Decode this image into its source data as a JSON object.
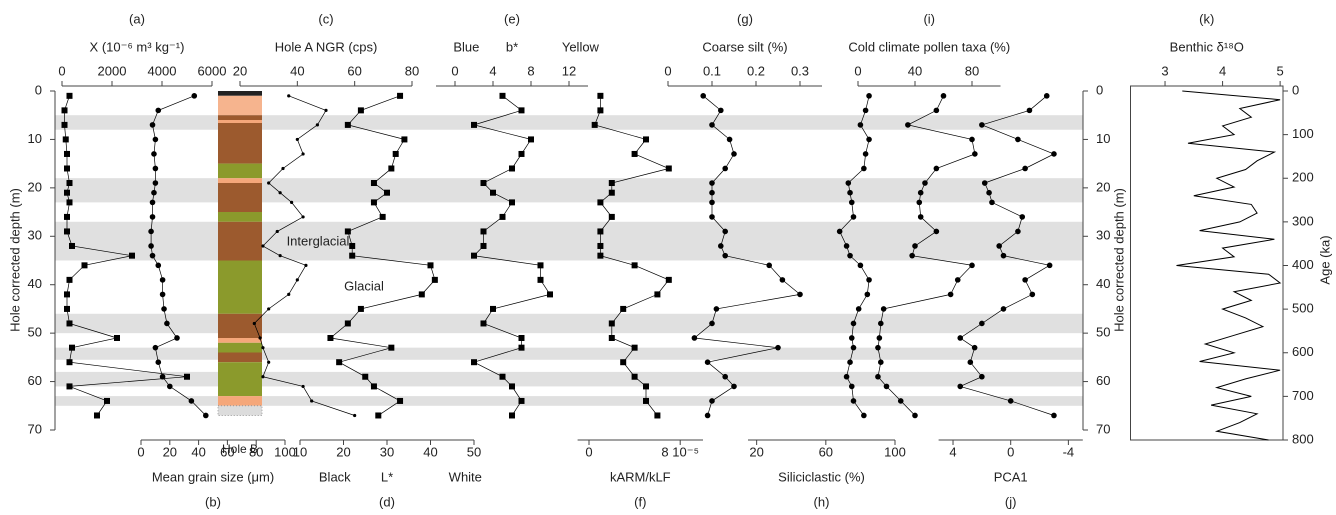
{
  "chart_data": [
    {
      "type": "frame",
      "ylabel": "Hole corrected depth (m)",
      "ylim": [
        0,
        70
      ],
      "yticks": [
        0,
        10,
        20,
        30,
        40,
        50,
        60,
        70
      ],
      "bands": [
        [
          5,
          8
        ],
        [
          18,
          23
        ],
        [
          27,
          35
        ],
        [
          46,
          50
        ],
        [
          53,
          55.5
        ],
        [
          58,
          61
        ],
        [
          63,
          65
        ]
      ],
      "annotations": [
        "Interglacial",
        "Glacial"
      ],
      "core_label": "Hole B"
    },
    {
      "type": "line",
      "label": "(a)",
      "xlabel": "X (10⁻⁶ m³ kg⁻¹)",
      "axis_side": "top",
      "xlim": [
        0,
        6000
      ],
      "xticks": [
        0,
        2000,
        4000,
        6000
      ],
      "marker": "square",
      "color": "#000",
      "y": [
        1,
        4,
        7,
        10,
        13,
        16,
        19,
        21,
        23,
        26,
        29,
        32,
        34,
        36,
        39,
        42,
        45,
        48,
        51,
        53,
        56,
        59,
        61,
        64,
        67
      ],
      "values": [
        300,
        100,
        100,
        150,
        200,
        200,
        300,
        200,
        300,
        200,
        200,
        400,
        2800,
        900,
        300,
        200,
        200,
        300,
        2200,
        400,
        300,
        5000,
        300,
        1800,
        1400
      ]
    },
    {
      "type": "line",
      "label": "(b)",
      "xlabel": "Mean grain size (μm)",
      "axis_side": "bottom",
      "xlim": [
        0,
        100
      ],
      "xticks": [
        0,
        20,
        40,
        60,
        80,
        100
      ],
      "marker": "circle",
      "color": "#000",
      "y": [
        1,
        4,
        7,
        10,
        13,
        16,
        19,
        21,
        23,
        26,
        29,
        32,
        34,
        36,
        39,
        42,
        45,
        48,
        51,
        53,
        56,
        59,
        61,
        64,
        67
      ],
      "values": [
        37,
        12,
        8,
        10,
        9,
        10,
        10,
        9,
        8,
        8,
        7,
        7,
        8,
        12,
        15,
        15,
        16,
        18,
        25,
        10,
        12,
        15,
        20,
        35,
        45
      ]
    },
    {
      "type": "line",
      "label": "(c)",
      "xlabel": "Hole A NGR (cps)",
      "axis_side": "top",
      "xlim": [
        20,
        80
      ],
      "xticks": [
        20,
        40,
        60,
        80
      ],
      "marker": "dot",
      "color": "#000",
      "y": [
        1,
        4,
        7,
        10,
        13,
        16,
        19,
        21,
        23,
        26,
        29,
        32,
        34,
        36,
        39,
        42,
        45,
        48,
        51,
        53,
        56,
        59,
        61,
        64,
        67
      ],
      "values": [
        37,
        50,
        47,
        40,
        42,
        35,
        30,
        34,
        38,
        42,
        33,
        28,
        34,
        43,
        40,
        37,
        30,
        25,
        27,
        28,
        30,
        28,
        42,
        45,
        60
      ]
    },
    {
      "type": "line",
      "label": "(d)",
      "xlabel": "L*",
      "xlabel_left": "Black",
      "xlabel_right": "White",
      "axis_side": "bottom",
      "xlim": [
        10,
        50
      ],
      "xticks": [
        10,
        20,
        30,
        40,
        50
      ],
      "marker": "square",
      "color": "#000",
      "y": [
        1,
        4,
        7,
        10,
        13,
        16,
        19,
        21,
        23,
        26,
        29,
        32,
        34,
        36,
        39,
        42,
        45,
        48,
        51,
        53,
        56,
        59,
        61,
        64,
        67
      ],
      "values": [
        33,
        24,
        21,
        34,
        32,
        31,
        27,
        30,
        27,
        29,
        21,
        22,
        22,
        40,
        41,
        38,
        24,
        21,
        17,
        31,
        19,
        25,
        27,
        33,
        28
      ]
    },
    {
      "type": "line",
      "label": "(e)",
      "xlabel": "b*",
      "xlabel_left": "Blue",
      "xlabel_right": "Yellow",
      "axis_side": "top",
      "xlim": [
        -2,
        14
      ],
      "xticks": [
        0,
        4,
        8,
        12
      ],
      "marker": "square",
      "color": "#000",
      "y": [
        1,
        4,
        7,
        10,
        13,
        16,
        19,
        21,
        23,
        26,
        29,
        32,
        34,
        36,
        39,
        42,
        45,
        48,
        51,
        53,
        56,
        59,
        61,
        64,
        67
      ],
      "values": [
        5,
        7,
        2,
        8,
        7,
        6,
        3,
        4,
        6,
        5,
        3,
        3,
        2,
        9,
        9,
        10,
        4,
        3,
        7,
        7,
        2,
        5,
        6,
        7,
        6
      ]
    },
    {
      "type": "line",
      "label": "(f)",
      "xlabel": "kARM/kLF",
      "axis_side": "bottom",
      "xlim": [
        -1,
        10
      ],
      "xticks": [
        0,
        {
          "value": 8,
          "label": "8 10⁻⁵"
        }
      ],
      "marker": "square",
      "color": "#000",
      "y": [
        1,
        4,
        7,
        10,
        13,
        16,
        19,
        21,
        23,
        26,
        29,
        32,
        34,
        36,
        39,
        42,
        45,
        48,
        51,
        53,
        56,
        59,
        61,
        64,
        67
      ],
      "values": [
        1,
        1,
        0.5,
        5,
        4,
        7,
        2,
        2,
        1,
        2,
        1,
        1,
        1,
        4,
        7,
        6,
        3,
        2,
        2,
        4,
        3,
        4,
        5,
        5,
        6
      ]
    },
    {
      "type": "line",
      "label": "(g)",
      "xlabel": "Coarse silt (%)",
      "axis_side": "top",
      "xlim": [
        0,
        0.35
      ],
      "xticks": [
        0,
        0.1,
        0.2,
        0.3
      ],
      "marker": "circle",
      "color": "#000",
      "y": [
        1,
        4,
        7,
        10,
        13,
        16,
        19,
        21,
        23,
        26,
        29,
        32,
        34,
        36,
        39,
        42,
        45,
        48,
        51,
        53,
        56,
        59,
        61,
        64,
        67
      ],
      "values": [
        0.08,
        0.12,
        0.1,
        0.14,
        0.15,
        0.13,
        0.1,
        0.1,
        0.1,
        0.1,
        0.13,
        0.12,
        0.13,
        0.23,
        0.26,
        0.3,
        0.11,
        0.1,
        0.06,
        0.25,
        0.09,
        0.13,
        0.15,
        0.1,
        0.09
      ]
    },
    {
      "type": "line",
      "label": "(h)",
      "xlabel": "Siliciclastic (%)",
      "axis_side": "bottom",
      "xlim": [
        15,
        100
      ],
      "xticks": [
        20,
        60,
        100
      ],
      "marker": "circle",
      "color": "#000",
      "y": [
        1,
        4,
        7,
        10,
        13,
        16,
        19,
        21,
        23,
        26,
        29,
        32,
        34,
        36,
        39,
        42,
        45,
        48,
        51,
        53,
        56,
        59,
        61,
        64,
        67
      ],
      "values": [
        85,
        83,
        80,
        85,
        83,
        82,
        73,
        74,
        75,
        76,
        68,
        72,
        74,
        80,
        85,
        84,
        79,
        76,
        75,
        76,
        74,
        72,
        75,
        76,
        82
      ]
    },
    {
      "type": "line",
      "label": "(i)",
      "xlabel": "Cold climate pollen taxa (%)",
      "axis_side": "top",
      "xlim": [
        0,
        100
      ],
      "xticks": [
        0,
        40,
        80
      ],
      "marker": "circle",
      "color": "#000",
      "y": [
        1,
        4,
        7,
        10,
        13,
        16,
        19,
        21,
        23,
        26,
        29,
        32,
        34,
        36,
        39,
        42,
        45,
        48,
        51,
        53,
        56,
        59,
        61,
        64,
        67
      ],
      "values": [
        60,
        55,
        35,
        80,
        82,
        55,
        47,
        44,
        43,
        44,
        55,
        40,
        38,
        80,
        70,
        65,
        18,
        16,
        15,
        14,
        16,
        14,
        20,
        30,
        40
      ]
    },
    {
      "type": "line",
      "label": "(j)",
      "xlabel": "PCA1",
      "axis_side": "bottom",
      "xlim": [
        5,
        -5
      ],
      "xticks": [
        4,
        0,
        -4
      ],
      "marker": "circle",
      "color": "#000",
      "y": [
        1,
        4,
        7,
        10,
        13,
        16,
        19,
        21,
        23,
        26,
        29,
        32,
        34,
        36,
        39,
        42,
        45,
        48,
        51,
        53,
        56,
        59,
        61,
        64,
        67
      ],
      "values": [
        -2.5,
        -1.3,
        2,
        -0.5,
        -3,
        -1,
        1.8,
        1.5,
        1.3,
        -0.8,
        -0.5,
        0.8,
        0.5,
        -2.7,
        -1,
        -1.5,
        0.5,
        2,
        3.5,
        2.5,
        2.8,
        2,
        3.5,
        0,
        -3
      ]
    },
    {
      "type": "age-line",
      "label": "(k)",
      "xlabel": "Benthic δ¹⁸O",
      "axis_side": "top",
      "xlim": [
        2.4,
        5.05
      ],
      "xticks": [
        3,
        4,
        5
      ],
      "marker": "none",
      "color": "#000",
      "ylabel": "Age (ka)",
      "ylim": [
        0,
        800
      ],
      "yticks": [
        0,
        100,
        200,
        300,
        400,
        500,
        600,
        700,
        800
      ],
      "y": [
        0,
        20,
        40,
        60,
        80,
        100,
        120,
        140,
        160,
        180,
        200,
        220,
        240,
        260,
        280,
        300,
        320,
        340,
        360,
        380,
        400,
        420,
        440,
        460,
        480,
        500,
        520,
        540,
        560,
        580,
        600,
        620,
        640,
        660,
        680,
        700,
        720,
        740,
        760,
        780,
        800
      ],
      "values": [
        3.3,
        5.0,
        4.3,
        4.5,
        4.0,
        4.2,
        3.4,
        4.9,
        4.6,
        4.4,
        3.9,
        4.2,
        3.5,
        4.5,
        4.6,
        4.3,
        3.6,
        4.9,
        4.0,
        4.2,
        3.2,
        4.8,
        5.0,
        4.2,
        4.5,
        4.0,
        4.4,
        4.7,
        4.2,
        3.7,
        4.2,
        3.6,
        5.0,
        4.4,
        3.9,
        4.5,
        3.8,
        4.6,
        4.3,
        3.9,
        4.8
      ]
    }
  ]
}
